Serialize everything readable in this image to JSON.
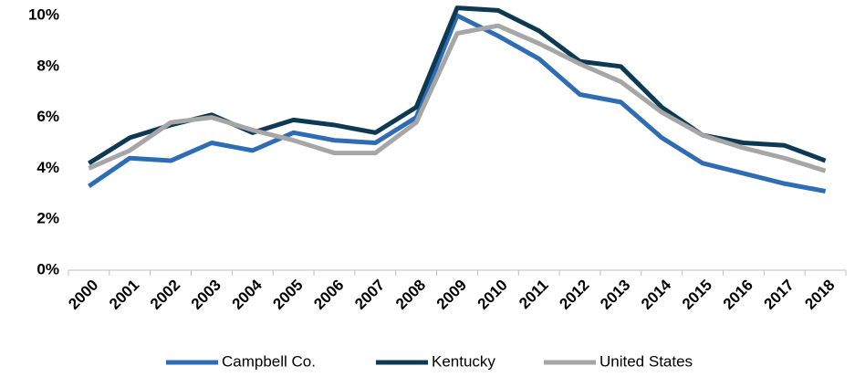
{
  "chart_data": {
    "type": "line",
    "categories": [
      "2000",
      "2001",
      "2002",
      "2003",
      "2004",
      "2005",
      "2006",
      "2007",
      "2008",
      "2009",
      "2010",
      "2011",
      "2012",
      "2013",
      "2014",
      "2015",
      "2016",
      "2017",
      "2018"
    ],
    "series": [
      {
        "name": "Campbell Co.",
        "color": "#2e6db4",
        "values": [
          3.3,
          4.4,
          4.3,
          5.0,
          4.7,
          5.4,
          5.1,
          5.0,
          6.0,
          10.0,
          9.2,
          8.3,
          6.9,
          6.6,
          5.2,
          4.2,
          3.8,
          3.4,
          3.1
        ]
      },
      {
        "name": "Kentucky",
        "color": "#0d3a52",
        "values": [
          4.2,
          5.2,
          5.7,
          6.1,
          5.4,
          5.9,
          5.7,
          5.4,
          6.4,
          10.3,
          10.2,
          9.4,
          8.2,
          8.0,
          6.4,
          5.3,
          5.0,
          4.9,
          4.3
        ]
      },
      {
        "name": "United States",
        "color": "#a6a6a6",
        "values": [
          4.0,
          4.7,
          5.8,
          6.0,
          5.5,
          5.1,
          4.6,
          4.6,
          5.8,
          9.3,
          9.6,
          8.9,
          8.1,
          7.4,
          6.2,
          5.3,
          4.8,
          4.4,
          3.9
        ]
      }
    ],
    "ylim": [
      0,
      10
    ],
    "yticks": [
      {
        "value": 0,
        "label": "0%"
      },
      {
        "value": 2,
        "label": "2%"
      },
      {
        "value": 4,
        "label": "4%"
      },
      {
        "value": 6,
        "label": "6%"
      },
      {
        "value": 8,
        "label": "8%"
      },
      {
        "value": 10,
        "label": "10%"
      }
    ],
    "grid": false,
    "legend": "bottom"
  }
}
